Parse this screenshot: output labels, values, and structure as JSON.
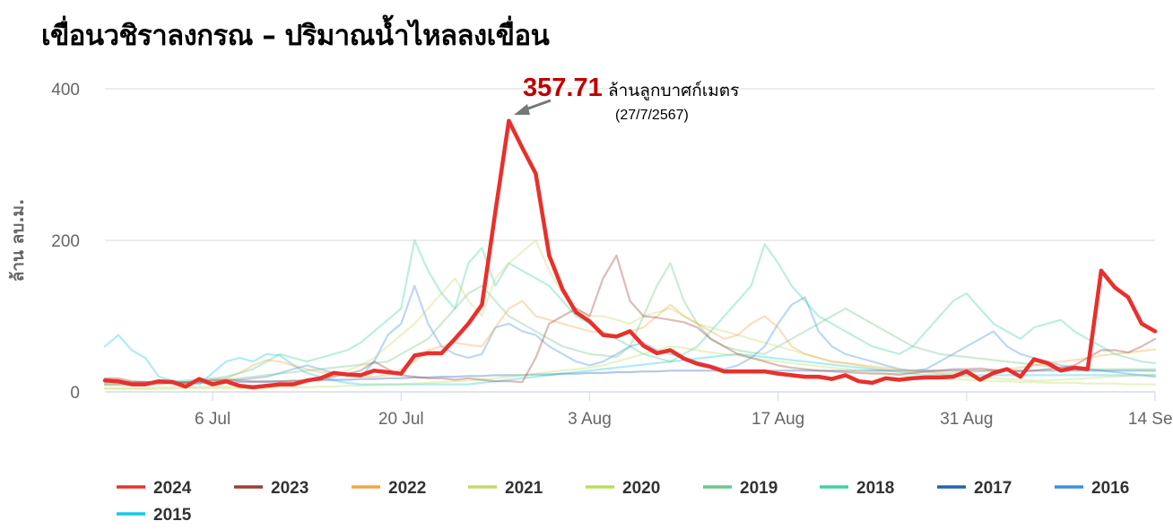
{
  "title": "เขื่อนวชิราลงกรณ – ปริมาณน้ำไหลลงเขื่อน",
  "annotation": {
    "value": "357.71",
    "unit": "ล้านลูกบาศก์เมตร",
    "date": "(27/7/2567)"
  },
  "chart_data": {
    "type": "line",
    "title": "เขื่อนวชิราลงกรณ – ปริมาณน้ำไหลลงเขื่อน",
    "ylabel": "ล้าน ลบ.ม.",
    "xlabel": "",
    "ylim": [
      0,
      400
    ],
    "yticks": [
      "0",
      "200",
      "400"
    ],
    "xtick_labels": [
      "6 Jul",
      "20 Jul",
      "3 Aug",
      "17 Aug",
      "31 Aug",
      "14 Sep"
    ],
    "x_start": "28 Jun",
    "grid": true,
    "legend_position": "bottom",
    "series": [
      {
        "name": "2024",
        "color": "#e8302c",
        "highlight": true,
        "values": [
          15,
          14,
          10,
          10,
          14,
          13,
          7,
          17,
          10,
          14,
          8,
          6,
          8,
          10,
          10,
          15,
          18,
          25,
          23,
          22,
          28,
          26,
          24,
          48,
          51,
          51,
          70,
          90,
          115,
          238,
          357.71,
          322,
          288,
          180,
          135,
          105,
          93,
          75,
          73,
          80,
          61,
          51,
          55,
          44,
          37,
          33,
          27,
          27,
          27,
          27,
          24,
          22,
          20,
          20,
          17,
          22,
          14,
          12,
          18,
          16,
          18,
          19,
          19,
          20,
          27,
          16,
          25,
          30,
          20,
          43,
          38,
          28,
          32,
          30,
          160,
          138,
          125,
          90,
          80
        ]
      },
      {
        "name": "2023",
        "color": "#9b3d36",
        "highlight": false,
        "values": [
          18,
          18,
          14,
          13,
          12,
          12,
          13,
          14,
          16,
          16,
          15,
          14,
          14,
          14,
          15,
          15,
          16,
          20,
          24,
          28,
          40,
          30,
          22,
          20,
          18,
          18,
          16,
          18,
          16,
          14,
          14,
          13,
          45,
          90,
          100,
          110,
          100,
          150,
          180,
          120,
          100,
          98,
          95,
          92,
          85,
          70,
          60,
          50,
          45,
          40,
          35,
          32,
          30,
          28,
          27,
          26,
          25,
          24,
          24,
          23,
          25,
          27,
          28,
          30,
          30,
          31,
          29,
          28,
          27,
          28,
          30,
          32,
          35,
          45,
          55,
          55,
          52,
          60,
          70
        ]
      },
      {
        "name": "2022",
        "color": "#f0a742",
        "highlight": false,
        "values": [
          9,
          9,
          9,
          10,
          10,
          11,
          12,
          13,
          15,
          18,
          25,
          35,
          42,
          40,
          35,
          30,
          26,
          24,
          22,
          20,
          20,
          22,
          30,
          40,
          55,
          60,
          65,
          62,
          60,
          85,
          110,
          120,
          100,
          95,
          90,
          85,
          80,
          78,
          75,
          80,
          85,
          100,
          115,
          100,
          90,
          80,
          70,
          75,
          90,
          100,
          85,
          60,
          50,
          45,
          40,
          38,
          35,
          32,
          30,
          28,
          27,
          26,
          25,
          25,
          26,
          27,
          28,
          30,
          32,
          35,
          38,
          40,
          42,
          45,
          48,
          50,
          52,
          54,
          56
        ]
      },
      {
        "name": "2021",
        "color": "#c9d66b",
        "highlight": false,
        "values": [
          5,
          5,
          5,
          5,
          6,
          6,
          6,
          6,
          7,
          7,
          8,
          8,
          9,
          10,
          12,
          14,
          18,
          22,
          28,
          35,
          45,
          60,
          75,
          90,
          110,
          130,
          150,
          120,
          100,
          150,
          170,
          185,
          200,
          160,
          130,
          110,
          100,
          100,
          95,
          90,
          100,
          105,
          110,
          100,
          90,
          85,
          80,
          75,
          70,
          65,
          60,
          55,
          50,
          45,
          40,
          38,
          36,
          34,
          32,
          30,
          28,
          26,
          24,
          22,
          20,
          19,
          18,
          17,
          16,
          15,
          15,
          16,
          17,
          18,
          19,
          20,
          21,
          22,
          23
        ]
      },
      {
        "name": "2020",
        "color": "#b6e05a",
        "highlight": false,
        "values": [
          4,
          4,
          4,
          4,
          4,
          4,
          5,
          5,
          5,
          5,
          5,
          5,
          5,
          6,
          6,
          6,
          7,
          7,
          8,
          8,
          9,
          10,
          10,
          11,
          12,
          13,
          14,
          15,
          16,
          18,
          20,
          22,
          24,
          26,
          28,
          30,
          32,
          35,
          40,
          45,
          50,
          55,
          60,
          58,
          55,
          52,
          50,
          48,
          45,
          42,
          40,
          38,
          36,
          34,
          32,
          30,
          28,
          26,
          24,
          22,
          20,
          19,
          18,
          17,
          16,
          15,
          14,
          14,
          13,
          13,
          12,
          12,
          12,
          11,
          11,
          11,
          10,
          10,
          10
        ]
      },
      {
        "name": "2019",
        "color": "#6cc788",
        "highlight": false,
        "values": [
          10,
          10,
          11,
          11,
          12,
          12,
          13,
          14,
          15,
          16,
          18,
          20,
          22,
          24,
          26,
          28,
          30,
          32,
          34,
          36,
          38,
          40,
          50,
          60,
          70,
          90,
          110,
          130,
          140,
          120,
          100,
          90,
          80,
          70,
          60,
          55,
          50,
          48,
          46,
          60,
          100,
          140,
          170,
          120,
          90,
          70,
          60,
          55,
          52,
          50,
          60,
          70,
          80,
          90,
          100,
          110,
          100,
          90,
          80,
          70,
          60,
          55,
          50,
          48,
          46,
          44,
          42,
          40,
          38,
          36,
          34,
          32,
          30,
          30,
          30,
          30,
          30,
          30,
          30
        ]
      },
      {
        "name": "2018",
        "color": "#3dd1a4",
        "highlight": false,
        "values": [
          12,
          12,
          12,
          13,
          13,
          14,
          15,
          16,
          18,
          20,
          25,
          30,
          40,
          50,
          45,
          40,
          45,
          50,
          55,
          65,
          80,
          95,
          110,
          200,
          160,
          130,
          110,
          170,
          190,
          140,
          170,
          160,
          150,
          140,
          120,
          100,
          90,
          80,
          70,
          60,
          50,
          45,
          40,
          50,
          60,
          80,
          100,
          120,
          140,
          195,
          170,
          140,
          120,
          100,
          90,
          80,
          70,
          60,
          55,
          50,
          60,
          80,
          100,
          120,
          130,
          110,
          90,
          80,
          70,
          85,
          90,
          95,
          80,
          70,
          60,
          50,
          45,
          40,
          38
        ]
      },
      {
        "name": "2017",
        "color": "#1f63b5",
        "highlight": false,
        "values": [
          14,
          14,
          13,
          13,
          13,
          12,
          12,
          12,
          12,
          12,
          13,
          13,
          13,
          14,
          14,
          15,
          15,
          16,
          16,
          17,
          17,
          18,
          18,
          19,
          19,
          20,
          20,
          21,
          21,
          22,
          22,
          22,
          23,
          23,
          24,
          24,
          25,
          25,
          26,
          26,
          27,
          27,
          28,
          28,
          28,
          28,
          28,
          28,
          28,
          28,
          28,
          28,
          28,
          28,
          28,
          28,
          28,
          28,
          28,
          28,
          28,
          28,
          28,
          28,
          28,
          28,
          28,
          28,
          28,
          28,
          28,
          28,
          28,
          28,
          28,
          28,
          28,
          28,
          28
        ]
      },
      {
        "name": "2016",
        "color": "#3b8fe0",
        "highlight": false,
        "values": [
          10,
          10,
          10,
          11,
          11,
          12,
          12,
          13,
          14,
          15,
          16,
          18,
          20,
          25,
          30,
          35,
          30,
          25,
          22,
          20,
          40,
          75,
          90,
          140,
          90,
          60,
          50,
          45,
          50,
          85,
          90,
          80,
          75,
          60,
          50,
          40,
          35,
          40,
          50,
          60,
          65,
          55,
          50,
          45,
          40,
          35,
          30,
          35,
          45,
          60,
          90,
          115,
          125,
          80,
          60,
          50,
          45,
          40,
          35,
          30,
          28,
          30,
          40,
          50,
          60,
          70,
          80,
          60,
          50,
          45,
          40,
          35,
          32,
          30,
          28,
          26,
          24,
          22,
          20
        ]
      },
      {
        "name": "2015",
        "color": "#17c8e6",
        "highlight": false,
        "values": [
          60,
          75,
          55,
          45,
          20,
          15,
          12,
          10,
          25,
          40,
          45,
          40,
          50,
          48,
          35,
          25,
          20,
          15,
          12,
          10,
          10,
          10,
          10,
          10,
          10,
          10,
          10,
          10,
          12,
          14,
          16,
          18,
          20,
          22,
          24,
          26,
          28,
          30,
          32,
          34,
          36,
          38,
          40,
          42,
          44,
          46,
          48,
          50,
          48,
          46,
          44,
          42,
          40,
          38,
          36,
          34,
          32,
          30,
          28,
          26,
          24,
          22,
          22,
          22,
          22,
          22,
          22,
          22,
          22,
          22,
          22,
          22,
          22,
          22,
          22,
          22,
          22,
          22,
          22
        ]
      }
    ]
  }
}
